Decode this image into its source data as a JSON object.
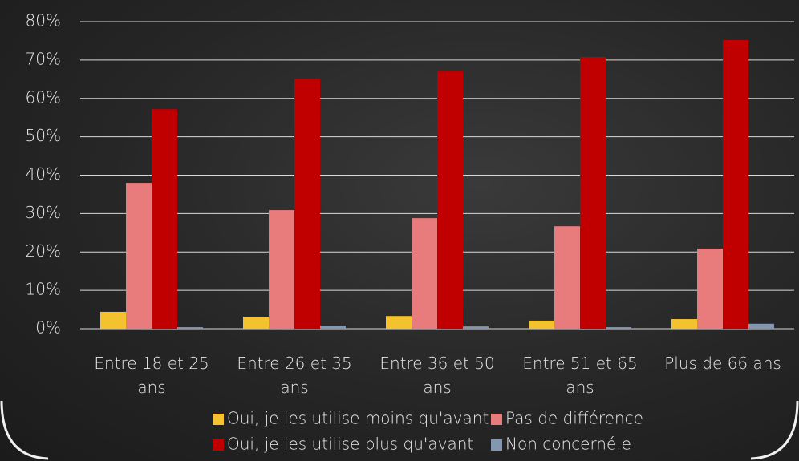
{
  "chart_data": {
    "type": "bar",
    "categories": [
      "Entre 18 et 25 ans",
      "Entre 26 et 35 ans",
      "Entre 36 et 50 ans",
      "Entre 51 et 65 ans",
      "Plus de 66 ans"
    ],
    "series": [
      {
        "name": "Oui, je les utilise moins qu'avant",
        "color": "#f4c22f",
        "values": [
          4.4,
          3.1,
          3.3,
          2.1,
          2.5
        ]
      },
      {
        "name": "Pas de différence",
        "color": "#e87b7b",
        "values": [
          38,
          30.9,
          28.8,
          26.7,
          20.9
        ]
      },
      {
        "name": "Oui, je les utilise plus qu'avant",
        "color": "#c00000",
        "values": [
          57.2,
          65.1,
          67.2,
          70.8,
          75.2
        ]
      },
      {
        "name": "Non concerné.e",
        "color": "#8497b0",
        "values": [
          0.4,
          0.8,
          0.6,
          0.4,
          1.3
        ]
      }
    ],
    "ylim": [
      0,
      80
    ],
    "yticks": [
      {
        "value": 0,
        "label": "0%"
      },
      {
        "value": 10,
        "label": "10%"
      },
      {
        "value": 20,
        "label": "20%"
      },
      {
        "value": 30,
        "label": "30%"
      },
      {
        "value": 40,
        "label": "40%"
      },
      {
        "value": 50,
        "label": "50%"
      },
      {
        "value": 60,
        "label": "60%"
      },
      {
        "value": 70,
        "label": "70%"
      },
      {
        "value": 80,
        "label": "80%"
      }
    ],
    "grid": true
  }
}
